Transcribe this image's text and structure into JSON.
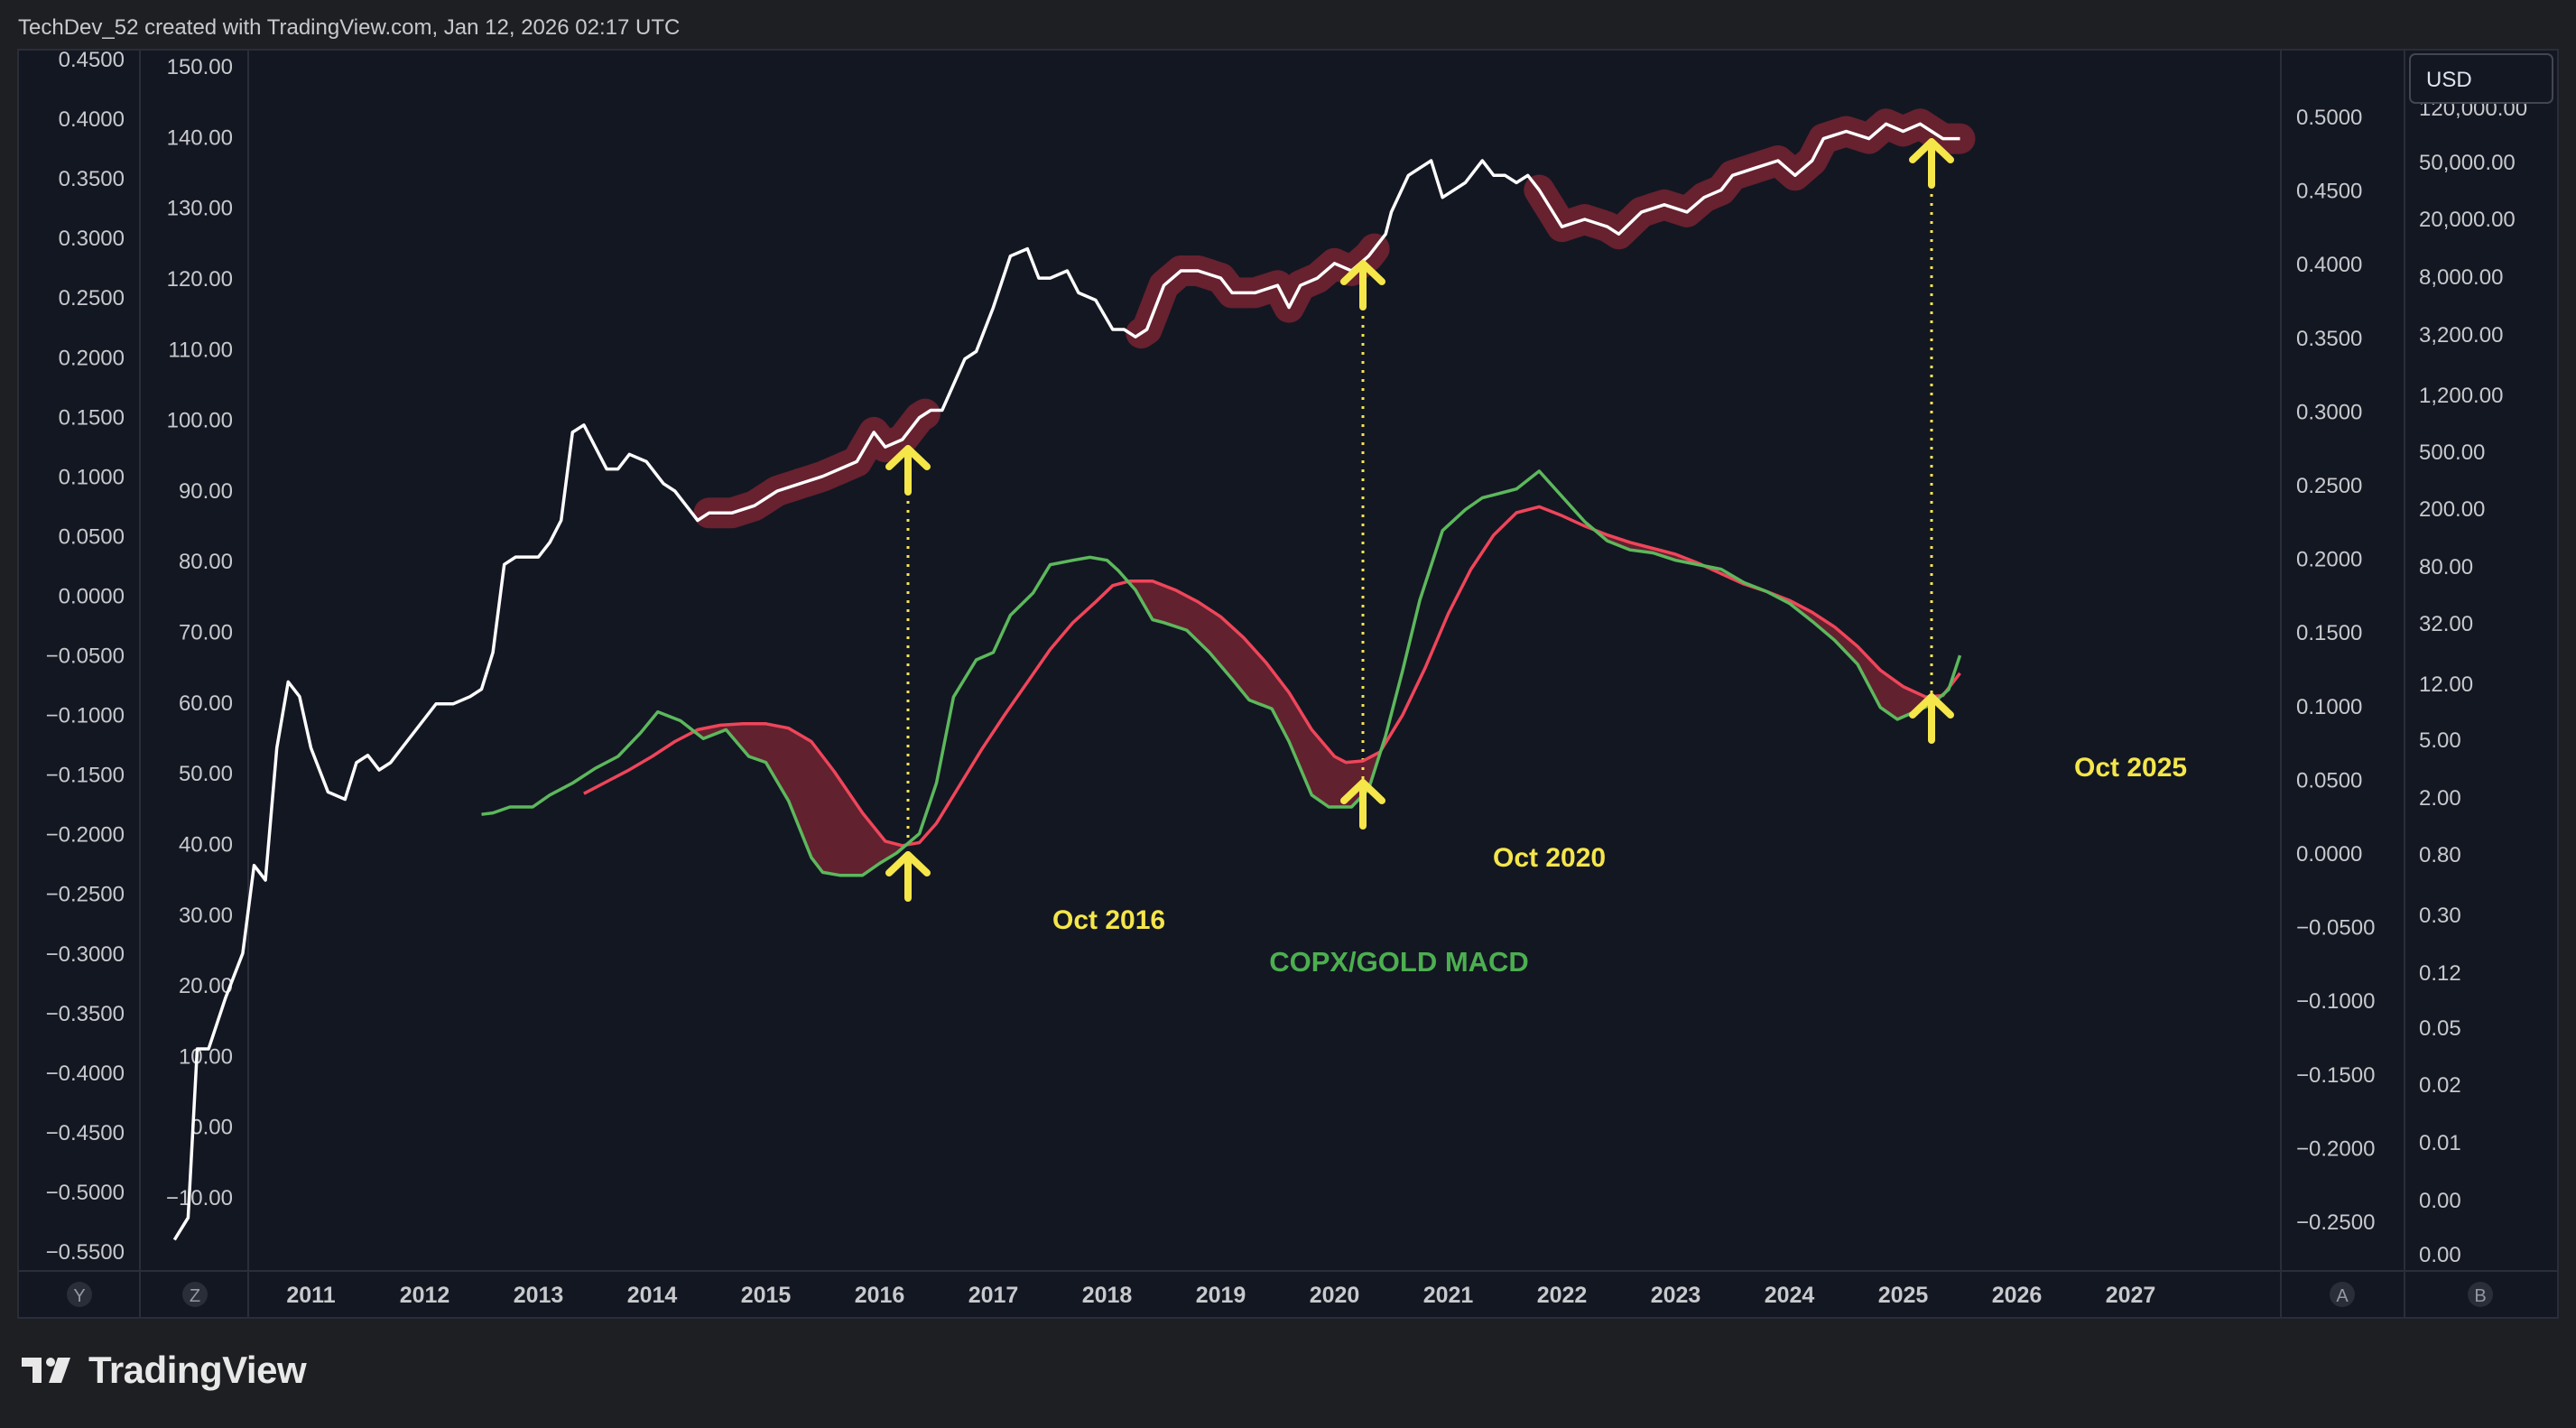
{
  "header": {
    "caption": "TechDev_52 created with TradingView.com, Jan 12, 2026 02:17 UTC"
  },
  "footer": {
    "brand": "TradingView"
  },
  "currency_button": {
    "label": "USD"
  },
  "axis_corner_labels": {
    "y": "Y",
    "z": "Z",
    "a": "A",
    "b": "B"
  },
  "colors": {
    "background": "#1e1f22",
    "plot_background": "#131722",
    "price_line": "#ffffff",
    "macd_line": "#5cb85c",
    "signal_line": "#f0455a",
    "highlight": "#6b2230",
    "annotation": "#f5e64a",
    "macd_label": "#4caf50",
    "axis_text": "#c8c9cc"
  },
  "axes": {
    "left_y_labels": [
      "0.4500",
      "0.4000",
      "0.3500",
      "0.3000",
      "0.2500",
      "0.2000",
      "0.1500",
      "0.1000",
      "0.0500",
      "0.0000",
      "−0.0500",
      "−0.1000",
      "−0.1500",
      "−0.2000",
      "−0.2500",
      "−0.3000",
      "−0.3500",
      "−0.4000",
      "−0.4500",
      "−0.5000",
      "−0.5500"
    ],
    "z_labels": [
      "150.00",
      "140.00",
      "130.00",
      "120.00",
      "110.00",
      "100.00",
      "90.00",
      "80.00",
      "70.00",
      "60.00",
      "50.00",
      "40.00",
      "30.00",
      "20.00",
      "10.00",
      "0.00",
      "−10.00"
    ],
    "right_a_labels": [
      "0.5000",
      "0.4500",
      "0.4000",
      "0.3500",
      "0.3000",
      "0.2500",
      "0.2000",
      "0.1500",
      "0.1000",
      "0.0500",
      "0.0000",
      "−0.0500",
      "−0.1000",
      "−0.1500",
      "−0.2000",
      "−0.2500"
    ],
    "right_b_labels": [
      "120,000.00",
      "50,000.00",
      "20,000.00",
      "8,000.00",
      "3,200.00",
      "1,200.00",
      "500.00",
      "200.00",
      "80.00",
      "32.00",
      "12.00",
      "5.00",
      "2.00",
      "0.80",
      "0.30",
      "0.12",
      "0.05",
      "0.02",
      "0.01",
      "0.00",
      "0.00"
    ],
    "x_labels": [
      "2011",
      "2012",
      "2013",
      "2014",
      "2015",
      "2016",
      "2017",
      "2018",
      "2019",
      "2020",
      "2021",
      "2022",
      "2023",
      "2024",
      "2025",
      "2026",
      "2027"
    ]
  },
  "annotations": [
    {
      "label": "Oct 2016",
      "year": 2016.75
    },
    {
      "label": "Oct 2020",
      "year": 2020.75
    },
    {
      "label": "Oct 2025",
      "year": 2025.75
    }
  ],
  "macd_label": "COPX/GOLD MACD",
  "chart_data": {
    "type": "line",
    "xlim": [
      2009.9,
      2028.0
    ],
    "x_unit": "year",
    "series": [
      {
        "axis": "z",
        "ylim": [
          -14,
          152
        ],
        "x": [
          2010.3,
          2010.42,
          2010.5,
          2010.6,
          2010.75,
          2010.9,
          2011.0,
          2011.1,
          2011.2,
          2011.3,
          2011.4,
          2011.5,
          2011.65,
          2011.8,
          2011.9,
          2012.0,
          2012.1,
          2012.2,
          2012.3,
          2012.45,
          2012.6,
          2012.75,
          2012.9,
          2013.0,
          2013.1,
          2013.2,
          2013.3,
          2013.5,
          2013.6,
          2013.7,
          2013.8,
          2013.9,
          2014.0,
          2014.1,
          2014.2,
          2014.3,
          2014.45,
          2014.6,
          2014.7,
          2014.8,
          2014.9,
          2015.0,
          2015.2,
          2015.4,
          2015.6,
          2015.8,
          2016.0,
          2016.3,
          2016.45,
          2016.55,
          2016.7,
          2016.85,
          2016.95,
          2017.05,
          2017.25,
          2017.35,
          2017.5,
          2017.65,
          2017.8,
          2017.9,
          2018.0,
          2018.15,
          2018.25,
          2018.4,
          2018.55,
          2018.65,
          2018.75,
          2018.85,
          2019.0,
          2019.15,
          2019.3,
          2019.5,
          2019.6,
          2019.8,
          2020.0,
          2020.1,
          2020.2,
          2020.35,
          2020.5,
          2020.65,
          2020.8,
          2020.95,
          2021.0,
          2021.15,
          2021.35,
          2021.45,
          2021.65,
          2021.8,
          2021.9,
          2022.0,
          2022.1,
          2022.2,
          2022.3,
          2022.5,
          2022.7,
          2022.9,
          2023.0,
          2023.2,
          2023.4,
          2023.6,
          2023.75,
          2023.9,
          2024.0,
          2024.2,
          2024.4,
          2024.55,
          2024.7,
          2024.8,
          2025.0,
          2025.2,
          2025.35,
          2025.5,
          2025.65,
          2025.75,
          2025.85,
          2026.0
        ],
        "values": [
          -10,
          -7,
          16,
          16,
          23,
          29,
          41,
          39,
          57,
          66,
          64,
          57,
          51,
          50,
          55,
          56,
          54,
          55,
          57,
          60,
          63,
          63,
          64,
          65,
          70,
          82,
          83,
          83,
          85,
          88,
          100,
          101,
          98,
          95,
          95,
          97,
          96,
          93,
          92,
          90,
          88,
          89,
          89,
          90,
          92,
          93,
          94,
          96,
          100,
          98,
          99,
          102,
          103,
          103,
          110,
          111,
          117,
          124,
          125,
          121,
          121,
          122,
          119,
          118,
          114,
          114,
          113,
          114,
          120,
          122,
          122,
          121,
          119,
          119,
          120,
          117,
          120,
          121,
          123,
          122,
          124,
          127,
          130,
          135,
          137,
          132,
          134,
          137,
          135,
          135,
          134,
          135,
          133,
          128,
          129,
          128,
          127,
          130,
          131,
          130,
          132,
          133,
          135,
          136,
          137,
          135,
          137,
          140,
          141,
          140,
          142,
          141,
          142,
          141,
          140,
          140
        ],
        "name": ""
      },
      {
        "axis": "a",
        "ylim": [
          -0.275,
          0.545
        ],
        "x": [
          2013.0,
          2013.1,
          2013.25,
          2013.45,
          2013.6,
          2013.8,
          2014.0,
          2014.2,
          2014.4,
          2014.55,
          2014.75,
          2014.95,
          2015.15,
          2015.35,
          2015.5,
          2015.7,
          2015.9,
          2016.0,
          2016.15,
          2016.35,
          2016.5,
          2016.65,
          2016.85,
          2017.0,
          2017.15,
          2017.35,
          2017.5,
          2017.65,
          2017.85,
          2018.0,
          2018.2,
          2018.35,
          2018.5,
          2018.6,
          2018.75,
          2018.9,
          2019.0,
          2019.2,
          2019.4,
          2019.6,
          2019.75,
          2019.95,
          2020.1,
          2020.3,
          2020.45,
          2020.65,
          2020.8,
          2020.95,
          2021.1,
          2021.25,
          2021.45,
          2021.65,
          2021.8,
          2022.0,
          2022.1,
          2022.3,
          2022.5,
          2022.7,
          2022.9,
          2023.1,
          2023.3,
          2023.5,
          2023.7,
          2023.9,
          2024.1,
          2024.3,
          2024.5,
          2024.7,
          2024.9,
          2025.1,
          2025.3,
          2025.45,
          2025.6,
          2025.75,
          2025.9,
          2026.0
        ],
        "values": [
          0.031,
          0.032,
          0.036,
          0.036,
          0.044,
          0.052,
          0.062,
          0.07,
          0.086,
          0.1,
          0.094,
          0.082,
          0.088,
          0.07,
          0.066,
          0.04,
          0.002,
          -0.008,
          -0.01,
          -0.01,
          -0.002,
          0.005,
          0.018,
          0.052,
          0.11,
          0.135,
          0.14,
          0.165,
          0.18,
          0.199,
          0.202,
          0.204,
          0.202,
          0.195,
          0.182,
          0.162,
          0.16,
          0.155,
          0.14,
          0.122,
          0.108,
          0.102,
          0.08,
          0.044,
          0.036,
          0.036,
          0.048,
          0.084,
          0.128,
          0.175,
          0.222,
          0.236,
          0.244,
          0.248,
          0.25,
          0.262,
          0.245,
          0.228,
          0.215,
          0.209,
          0.207,
          0.202,
          0.199,
          0.196,
          0.187,
          0.181,
          0.173,
          0.161,
          0.148,
          0.132,
          0.103,
          0.095,
          0.1,
          0.105,
          0.115,
          0.138
        ],
        "name": ""
      },
      {
        "axis": "a",
        "ylim": [
          -0.275,
          0.545
        ],
        "x": [
          2013.9,
          2014.1,
          2014.3,
          2014.5,
          2014.7,
          2014.9,
          2015.1,
          2015.3,
          2015.5,
          2015.7,
          2015.9,
          2016.1,
          2016.35,
          2016.55,
          2016.7,
          2016.85,
          2017.0,
          2017.2,
          2017.4,
          2017.6,
          2017.8,
          2018.0,
          2018.2,
          2018.4,
          2018.55,
          2018.7,
          2018.9,
          2019.1,
          2019.3,
          2019.5,
          2019.7,
          2019.9,
          2020.1,
          2020.3,
          2020.5,
          2020.6,
          2020.75,
          2020.9,
          2021.1,
          2021.3,
          2021.5,
          2021.7,
          2021.9,
          2022.1,
          2022.3,
          2022.5,
          2022.7,
          2022.9,
          2023.1,
          2023.3,
          2023.5,
          2023.7,
          2023.9,
          2024.1,
          2024.3,
          2024.5,
          2024.7,
          2024.9,
          2025.1,
          2025.3,
          2025.5,
          2025.7,
          2025.85,
          2026.0
        ],
        "values": [
          0.045,
          0.053,
          0.061,
          0.07,
          0.08,
          0.088,
          0.091,
          0.092,
          0.092,
          0.089,
          0.08,
          0.06,
          0.032,
          0.013,
          0.01,
          0.012,
          0.025,
          0.05,
          0.075,
          0.098,
          0.12,
          0.142,
          0.16,
          0.174,
          0.185,
          0.188,
          0.188,
          0.182,
          0.174,
          0.164,
          0.15,
          0.133,
          0.113,
          0.088,
          0.07,
          0.066,
          0.067,
          0.073,
          0.098,
          0.13,
          0.166,
          0.196,
          0.219,
          0.234,
          0.238,
          0.232,
          0.225,
          0.219,
          0.214,
          0.21,
          0.206,
          0.2,
          0.193,
          0.186,
          0.181,
          0.175,
          0.167,
          0.157,
          0.144,
          0.128,
          0.117,
          0.11,
          0.111,
          0.126
        ],
        "name": ""
      }
    ],
    "highlight_ranges_price": [
      [
        2015.0,
        2016.9
      ],
      [
        2018.8,
        2020.85
      ],
      [
        2022.3,
        2026.0
      ]
    ],
    "left_y_axis_range": [
      -0.57,
      0.455
    ],
    "right_b_axis_scale": "log",
    "grid": false,
    "legend": "none"
  }
}
